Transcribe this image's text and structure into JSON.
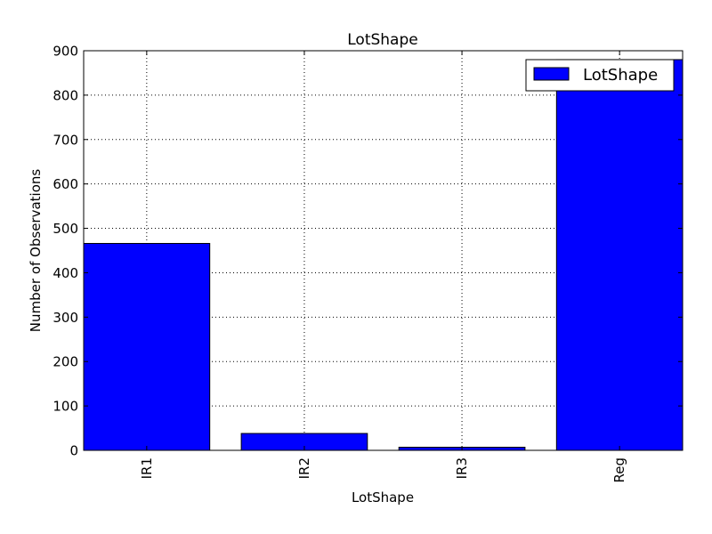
{
  "chart_data": {
    "type": "bar",
    "title": "LotShape",
    "xlabel": "LotShape",
    "ylabel": "Number of Observations",
    "categories": [
      "IR1",
      "IR2",
      "IR3",
      "Reg"
    ],
    "series": [
      {
        "name": "LotShape",
        "values": [
          466,
          38,
          7,
          880
        ],
        "color": "#0000ff"
      }
    ],
    "ylim": [
      0,
      900
    ],
    "yticks": [
      "0",
      "100",
      "200",
      "300",
      "400",
      "500",
      "600",
      "700",
      "800",
      "900"
    ],
    "grid": true,
    "legend_position": "top-right"
  }
}
